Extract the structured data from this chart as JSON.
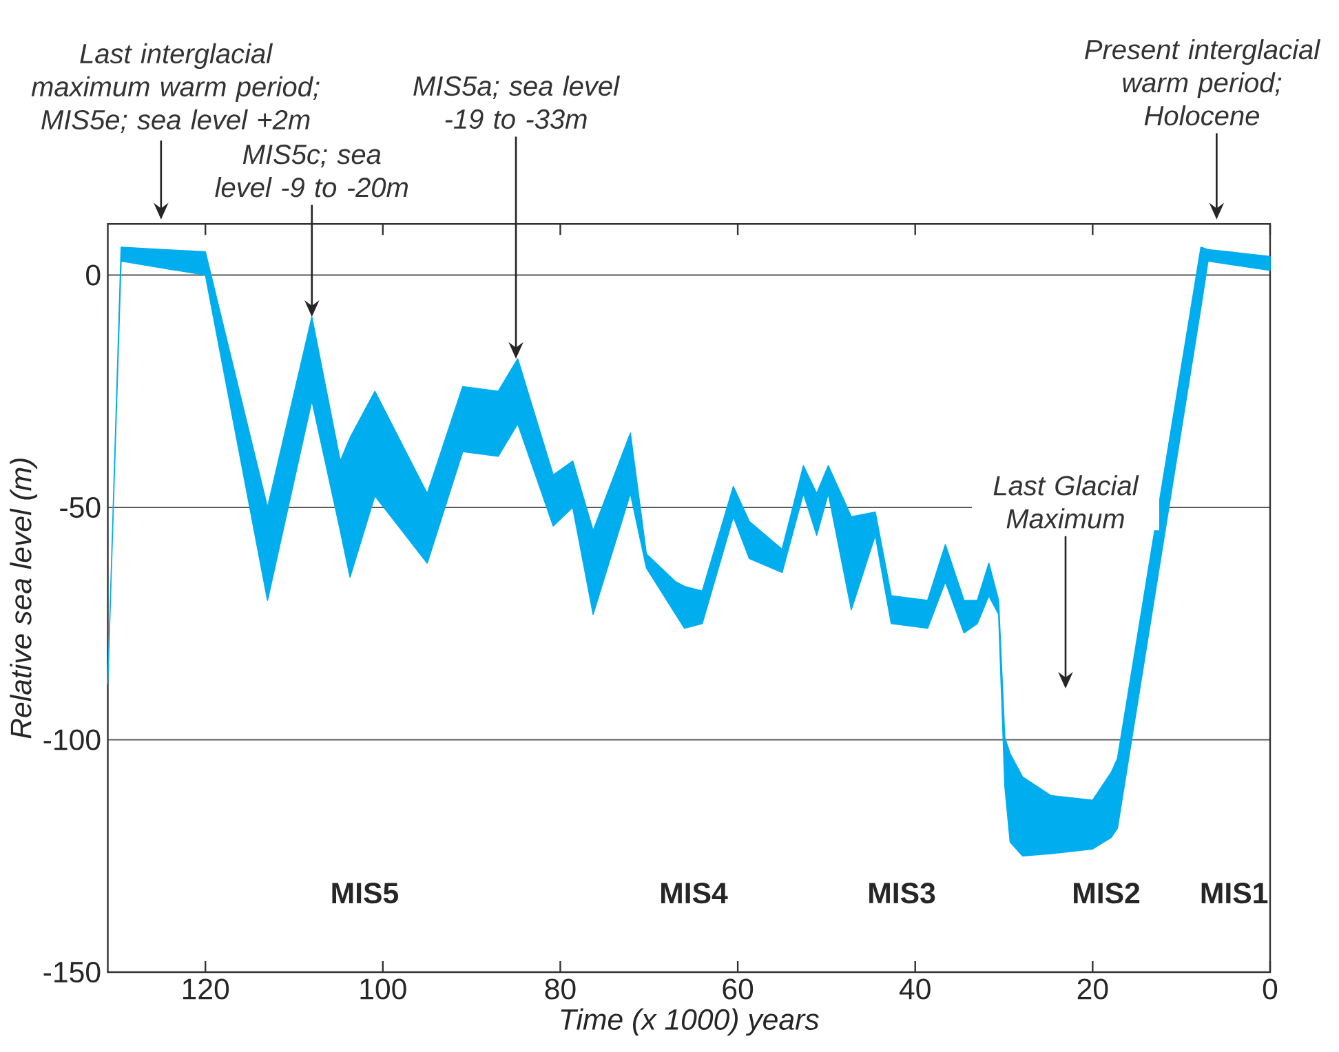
{
  "chart_data": {
    "type": "line",
    "xlabel": "Time (x 1000) years",
    "ylabel": "Relative sea level (m)",
    "xlim": [
      131,
      0
    ],
    "ylim": [
      -150,
      11
    ],
    "xticks": [
      120,
      100,
      80,
      60,
      40,
      20,
      0
    ],
    "yticks": [
      0,
      -50,
      -100,
      -150
    ],
    "grid": "y",
    "series": [
      {
        "color": "#00aeef",
        "x": [
          131,
          129.5,
          120,
          113,
          108,
          104.8,
          103.7,
          100.9,
          95,
          91,
          87,
          84.8,
          80.8,
          78.6,
          76.3,
          72.1,
          70.3,
          67,
          66,
          64,
          60.5,
          58.7,
          55,
          52.6,
          51.1,
          49.8,
          47.2,
          44.5,
          42.7,
          38.6,
          36.6,
          34.5,
          33,
          31.7,
          30.6,
          29.9,
          29.3,
          27.9,
          24.7,
          20,
          17.9,
          17.2,
          7.8,
          7,
          0
        ],
        "values": [
          null,
          null,
          null,
          null,
          null,
          null,
          null,
          null,
          null,
          null,
          null,
          null,
          null,
          null,
          null,
          null,
          null,
          null,
          null,
          null,
          null,
          null,
          null,
          null,
          null,
          null,
          null,
          null,
          null,
          null,
          null,
          null,
          null,
          null,
          null,
          null,
          null,
          null,
          null,
          null,
          null,
          null,
          null,
          null,
          null
        ],
        "upper": [
          -88,
          6,
          5,
          -50,
          -9,
          -40,
          -35,
          -25,
          -47,
          -24,
          -25,
          -18,
          -43,
          -40,
          -55,
          -34,
          -60,
          -66,
          -67,
          -68,
          -45.5,
          -53,
          -59,
          -41,
          -47,
          -41,
          -52,
          -51,
          -69,
          -70,
          -58,
          -70,
          -70,
          -62,
          -70,
          -99.5,
          -103,
          -108,
          -112,
          -113,
          -107,
          -104,
          6,
          5.5,
          4
        ],
        "lower": [
          -88,
          3,
          0,
          -70,
          -27,
          -55,
          -65,
          -47.5,
          -62,
          -38,
          -39,
          -32,
          -54,
          -50,
          -73,
          -47,
          -63,
          -73,
          -76,
          -75,
          -52,
          -61,
          -64,
          -47,
          -56,
          -47,
          -72,
          -56,
          -75,
          -76,
          -66,
          -77,
          -75,
          -69,
          -73,
          -110,
          -122,
          -125,
          -124.5,
          -123.5,
          -121,
          -119,
          -7,
          3,
          1
        ]
      }
    ],
    "annotations": [
      "Last interglacial maximum warm period; MIS5e; sea level +2m",
      {
        "text": "MIS5c; sea level -9 to -20m",
        "x": 108,
        "y": -9
      },
      {
        "text": "MIS5a; sea level -19 to -33m",
        "x": 85,
        "y": -18
      },
      "Present interglacial warm period; Holocene",
      "Last Glacial Maximum",
      "MIS5",
      "MIS4",
      "MIS3",
      "MIS2",
      "MIS1"
    ]
  }
}
